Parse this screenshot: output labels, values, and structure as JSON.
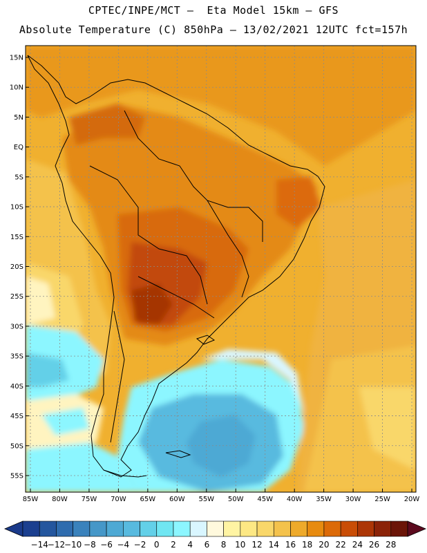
{
  "header": {
    "line1": "CPTEC/INPE/MCT –  Eta Model 15km – GFS",
    "line2": "Absolute Temperature (C) 850hPa – 13/02/2021 12UTC fct=157h"
  },
  "map": {
    "lat_labels": [
      "15N",
      "10N",
      "5N",
      "EQ",
      "5S",
      "10S",
      "15S",
      "20S",
      "25S",
      "30S",
      "35S",
      "40S",
      "45S",
      "50S",
      "55S"
    ],
    "lon_labels": [
      "85W",
      "80W",
      "75W",
      "70W",
      "65W",
      "60W",
      "55W",
      "50W",
      "45W",
      "40W",
      "35W",
      "30W",
      "25W",
      "20W"
    ],
    "lat_values": [
      15,
      10,
      5,
      0,
      -5,
      -10,
      -15,
      -20,
      -25,
      -30,
      -35,
      -40,
      -45,
      -50,
      -55
    ],
    "lon_values": [
      -85,
      -80,
      -75,
      -70,
      -65,
      -60,
      -55,
      -50,
      -45,
      -40,
      -35,
      -30,
      -25,
      -20
    ]
  },
  "colorbar": {
    "labels": [
      "-14",
      "-12",
      "-10",
      "-8",
      "-6",
      "-4",
      "-2",
      "0",
      "2",
      "4",
      "6",
      "8",
      "10",
      "12",
      "14",
      "16",
      "18",
      "20",
      "22",
      "24",
      "26",
      "28"
    ],
    "colors": [
      "#1b3f8f",
      "#24569e",
      "#2f6cae",
      "#3a82bc",
      "#4597c8",
      "#4ea9d4",
      "#58badf",
      "#63d0e8",
      "#70e6f2",
      "#8cf6ff",
      "#d9f6ff",
      "#fff9dd",
      "#fff4a3",
      "#fde884",
      "#f9d76a",
      "#f4c24c",
      "#eeaa2b",
      "#e78b10",
      "#dc6a08",
      "#c94d06",
      "#ac3606",
      "#8b2308",
      "#6b1508"
    ],
    "min_color": "#1a3a8a",
    "max_color": "#5c0a1e"
  }
}
